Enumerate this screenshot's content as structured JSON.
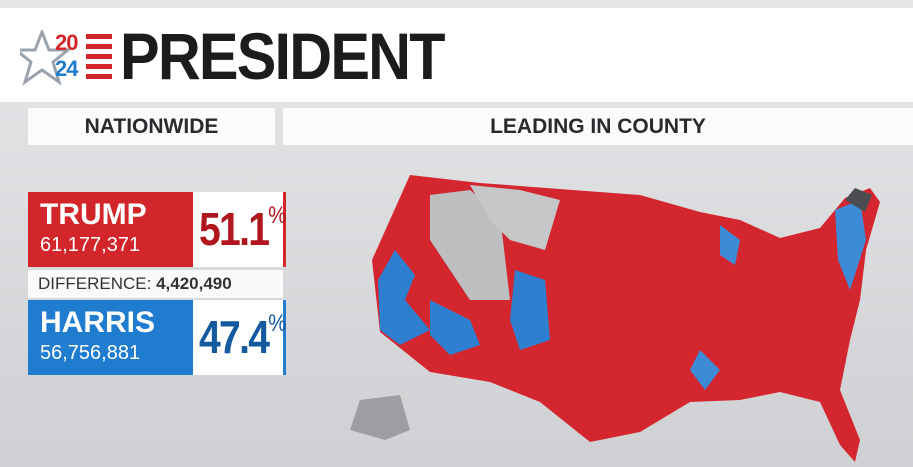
{
  "header": {
    "logo_top": "20",
    "logo_bottom": "24",
    "title": "PRESIDENT"
  },
  "nationwide": {
    "heading": "NATIONWIDE",
    "candidates": [
      {
        "name": "TRUMP",
        "votes": "61,177,371",
        "percent": "51.1",
        "unit": "%"
      },
      {
        "name": "HARRIS",
        "votes": "56,756,881",
        "percent": "47.4",
        "unit": "%"
      }
    ],
    "difference": {
      "label": "DIFFERENCE:",
      "value": "4,420,490"
    }
  },
  "map": {
    "heading": "LEADING IN COUNTY"
  }
}
